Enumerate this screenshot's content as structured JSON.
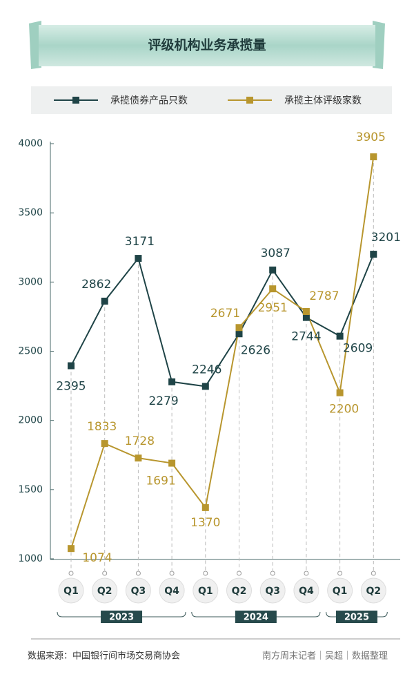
{
  "chart_data": {
    "type": "line",
    "title": "评级机构业务承揽量",
    "categories": [
      "Q1",
      "Q2",
      "Q3",
      "Q4",
      "Q1",
      "Q2",
      "Q3",
      "Q4",
      "Q1",
      "Q2"
    ],
    "groups": [
      {
        "label": "2023",
        "span": 4
      },
      {
        "label": "2024",
        "span": 4
      },
      {
        "label": "2025",
        "span": 2
      }
    ],
    "series": [
      {
        "name": "承揽债券产品只数",
        "color": "#1f4447",
        "values": [
          2395,
          2862,
          3171,
          2279,
          2246,
          2626,
          3087,
          2744,
          2609,
          3201
        ]
      },
      {
        "name": "承揽主体评级家数",
        "color": "#b8962e",
        "values": [
          1074,
          1833,
          1728,
          1691,
          1370,
          2671,
          2951,
          2787,
          2200,
          3905
        ]
      }
    ],
    "ylim": [
      1000,
      4000
    ],
    "yticks": [
      1000,
      1500,
      2000,
      2500,
      3000,
      3500,
      4000
    ],
    "source": "数据来源：中国银行间市场交易商协会",
    "credit": "南方周末记者｜吴超｜数据整理"
  }
}
